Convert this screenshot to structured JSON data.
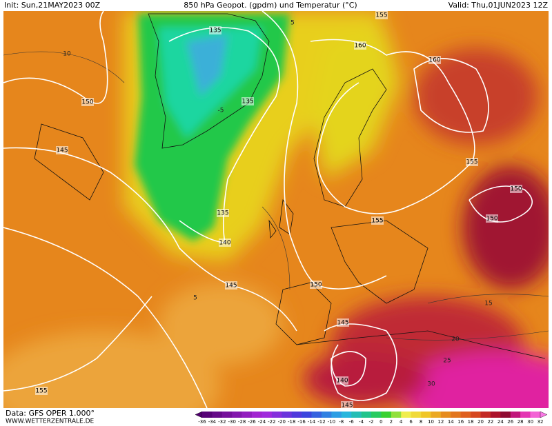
{
  "header": {
    "init": "Init: Sun,21MAY2023 00Z",
    "title": "850 hPa Geopot. (gpdm) und Temperatur (°C)",
    "valid": "Valid: Thu,01JUN2023 12Z"
  },
  "footer": {
    "source": "Data: GFS OPER 1.000°",
    "site": "WWW.WETTERZENTRALE.DE"
  },
  "contour_labels": [
    "135",
    "155",
    "160",
    "160",
    "150",
    "135",
    "145",
    "155",
    "150",
    "150",
    "135",
    "155",
    "140",
    "145",
    "150",
    "145",
    "140",
    "155",
    "145"
  ],
  "isotherm_labels": [
    "10",
    "5",
    "15",
    "20",
    "25",
    "30",
    "5",
    "-5"
  ],
  "colorbar": {
    "labels": [
      "-36",
      "-34",
      "-32",
      "-30",
      "-28",
      "-26",
      "-24",
      "-22",
      "-20",
      "-18",
      "-16",
      "-14",
      "-12",
      "-10",
      "-8",
      "-6",
      "-4",
      "-2",
      "0",
      "2",
      "4",
      "6",
      "8",
      "10",
      "12",
      "14",
      "16",
      "18",
      "20",
      "22",
      "24",
      "26",
      "28",
      "30",
      "32"
    ]
  }
}
